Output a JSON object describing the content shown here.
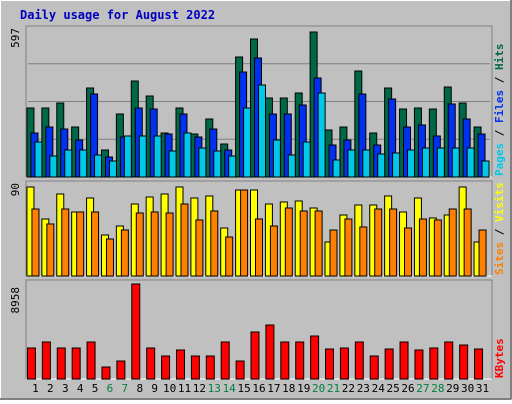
{
  "title": "Daily usage for August 2022",
  "colors": {
    "outer_bg": "#c0c0c0",
    "plot_bg": "#c0c0c0",
    "hits": "#006848",
    "files": "#0030f0",
    "pages": "#00c8e8",
    "visits": "#ffff00",
    "sites": "#ff8000",
    "kbytes": "#ff0000",
    "title": "#0000c0",
    "weekend": "#008040",
    "weekday": "#000000"
  },
  "chart_data": [
    {
      "type": "bar",
      "panel": "top",
      "max_label": "597",
      "right_label": {
        "pages": "Pages",
        "files": "Files",
        "hits": "Hits",
        "sep": " / "
      },
      "categories": [
        "1",
        "2",
        "3",
        "4",
        "5",
        "6",
        "7",
        "8",
        "9",
        "10",
        "11",
        "12",
        "13",
        "14",
        "15",
        "16",
        "17",
        "18",
        "19",
        "20",
        "21",
        "22",
        "23",
        "24",
        "25",
        "26",
        "27",
        "28",
        "29",
        "30",
        "31"
      ],
      "ylim": [
        0,
        597
      ],
      "series": [
        {
          "name": "Hits",
          "values": [
            282,
            282,
            302,
            204,
            361,
            110,
            254,
            388,
            330,
            180,
            282,
            176,
            234,
            133,
            488,
            560,
            321,
            321,
            341,
            588,
            190,
            204,
            432,
            180,
            361,
            276,
            282,
            276,
            365,
            302,
            204
          ]
        },
        {
          "name": "Files",
          "values": [
            180,
            204,
            196,
            152,
            337,
            80,
            161,
            282,
            276,
            176,
            254,
            161,
            196,
            108,
            428,
            484,
            254,
            254,
            292,
            404,
            128,
            152,
            337,
            128,
            317,
            204,
            212,
            166,
            298,
            234,
            176
          ]
        },
        {
          "name": "Pages",
          "values": [
            142,
            84,
            108,
            108,
            90,
            64,
            166,
            166,
            166,
            104,
            180,
            118,
            104,
            84,
            282,
            375,
            152,
            90,
            142,
            341,
            70,
            108,
            108,
            94,
            98,
            108,
            118,
            118,
            118,
            118,
            64
          ]
        }
      ]
    },
    {
      "type": "bar",
      "panel": "middle",
      "max_label": "90",
      "right_label": {
        "sites": "Sites",
        "visits": "Visits",
        "sep": " / "
      },
      "categories": [
        "1",
        "2",
        "3",
        "4",
        "5",
        "6",
        "7",
        "8",
        "9",
        "10",
        "11",
        "12",
        "13",
        "14",
        "15",
        "16",
        "17",
        "18",
        "19",
        "20",
        "21",
        "22",
        "23",
        "24",
        "25",
        "26",
        "27",
        "28",
        "29",
        "30",
        "31"
      ],
      "ylim": [
        0,
        90
      ],
      "series": [
        {
          "name": "Visits",
          "values": [
            88,
            56,
            81,
            63,
            77,
            41,
            49,
            71,
            78,
            81,
            88,
            77,
            79,
            47,
            85,
            85,
            71,
            73,
            74,
            67,
            34,
            60,
            70,
            70,
            79,
            63,
            77,
            57,
            60,
            88,
            34
          ]
        },
        {
          "name": "Sites",
          "values": [
            66,
            51,
            66,
            63,
            63,
            37,
            45,
            62,
            63,
            62,
            71,
            55,
            64,
            39,
            85,
            56,
            49,
            67,
            64,
            64,
            45,
            56,
            48,
            66,
            66,
            47,
            56,
            55,
            66,
            66,
            45
          ]
        }
      ]
    },
    {
      "type": "bar",
      "panel": "bottom",
      "max_label": "8958",
      "right_label": {
        "kbytes": "KBytes"
      },
      "categories": [
        "1",
        "2",
        "3",
        "4",
        "5",
        "6",
        "7",
        "8",
        "9",
        "10",
        "11",
        "12",
        "13",
        "14",
        "15",
        "16",
        "17",
        "18",
        "19",
        "20",
        "21",
        "22",
        "23",
        "24",
        "25",
        "26",
        "27",
        "28",
        "29",
        "30",
        "31"
      ],
      "ylim": [
        0,
        8958
      ],
      "series": [
        {
          "name": "KBytes",
          "values": [
            2963,
            3476,
            2963,
            2963,
            3476,
            1118,
            1720,
            8958,
            2963,
            2167,
            2691,
            2167,
            2167,
            3476,
            1720,
            4412,
            5068,
            3476,
            3476,
            4063,
            2823,
            2963,
            3476,
            2167,
            2823,
            3476,
            2691,
            2963,
            3476,
            3238,
            2823
          ]
        }
      ]
    }
  ],
  "x_labels": [
    "1",
    "2",
    "3",
    "4",
    "5",
    "6",
    "7",
    "8",
    "9",
    "10",
    "11",
    "12",
    "13",
    "14",
    "15",
    "16",
    "17",
    "18",
    "19",
    "20",
    "21",
    "22",
    "23",
    "24",
    "25",
    "26",
    "27",
    "28",
    "29",
    "30",
    "31"
  ],
  "weekend_days": [
    6,
    7,
    13,
    14,
    20,
    21,
    27,
    28
  ]
}
